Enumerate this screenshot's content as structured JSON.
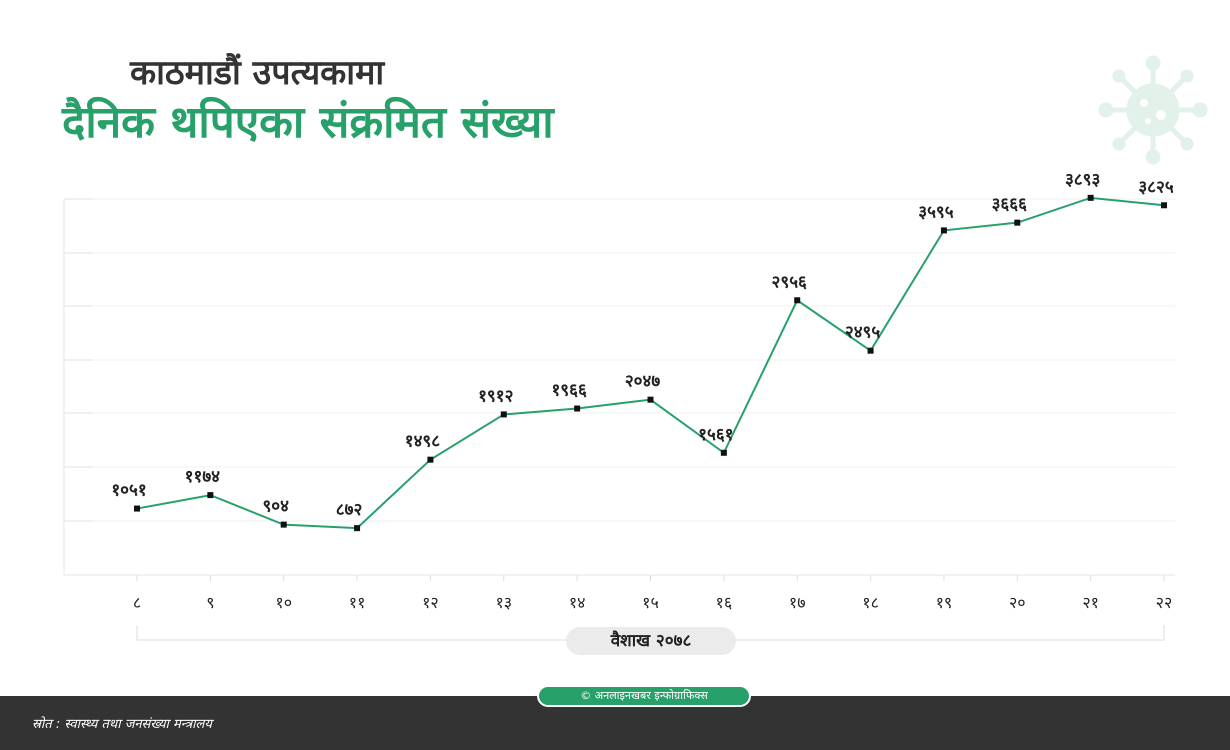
{
  "title": {
    "line1": "काठमाडौं उपत्यकामा",
    "line2": "दैनिक थपिएका संक्रमित संख्या"
  },
  "chart_data": {
    "type": "line",
    "categories": [
      "८",
      "९",
      "१०",
      "११",
      "१२",
      "१३",
      "१४",
      "१५",
      "१६",
      "१७",
      "१८",
      "१९",
      "२०",
      "२१",
      "२२"
    ],
    "values": [
      1051,
      1174,
      904,
      872,
      1498,
      1912,
      1966,
      2047,
      1561,
      2956,
      2495,
      3595,
      3666,
      3893,
      3825
    ],
    "data_labels": [
      "१०५१",
      "११७४",
      "९०४",
      "८७२",
      "१४९८",
      "१९१२",
      "१९६६",
      "२०४७",
      "१५६१",
      "२९५६",
      "२४९५",
      "३५९५",
      "३६६६",
      "३८९३",
      "३८२५"
    ],
    "xlabel": "वैशाख २०७८",
    "ylim": [
      0,
      3500
    ],
    "grid": true,
    "line_color": "#27a06a"
  },
  "colors": {
    "accent": "#27a06a",
    "footer_bg": "#333333"
  },
  "icons": {
    "decoration": "virus-icon"
  },
  "footer": {
    "source": "स्रोत : स्वास्थ्य तथा जनसंख्या मन्त्रालय",
    "credit": "© अनलाइनखबर इन्फोग्राफिक्स"
  }
}
